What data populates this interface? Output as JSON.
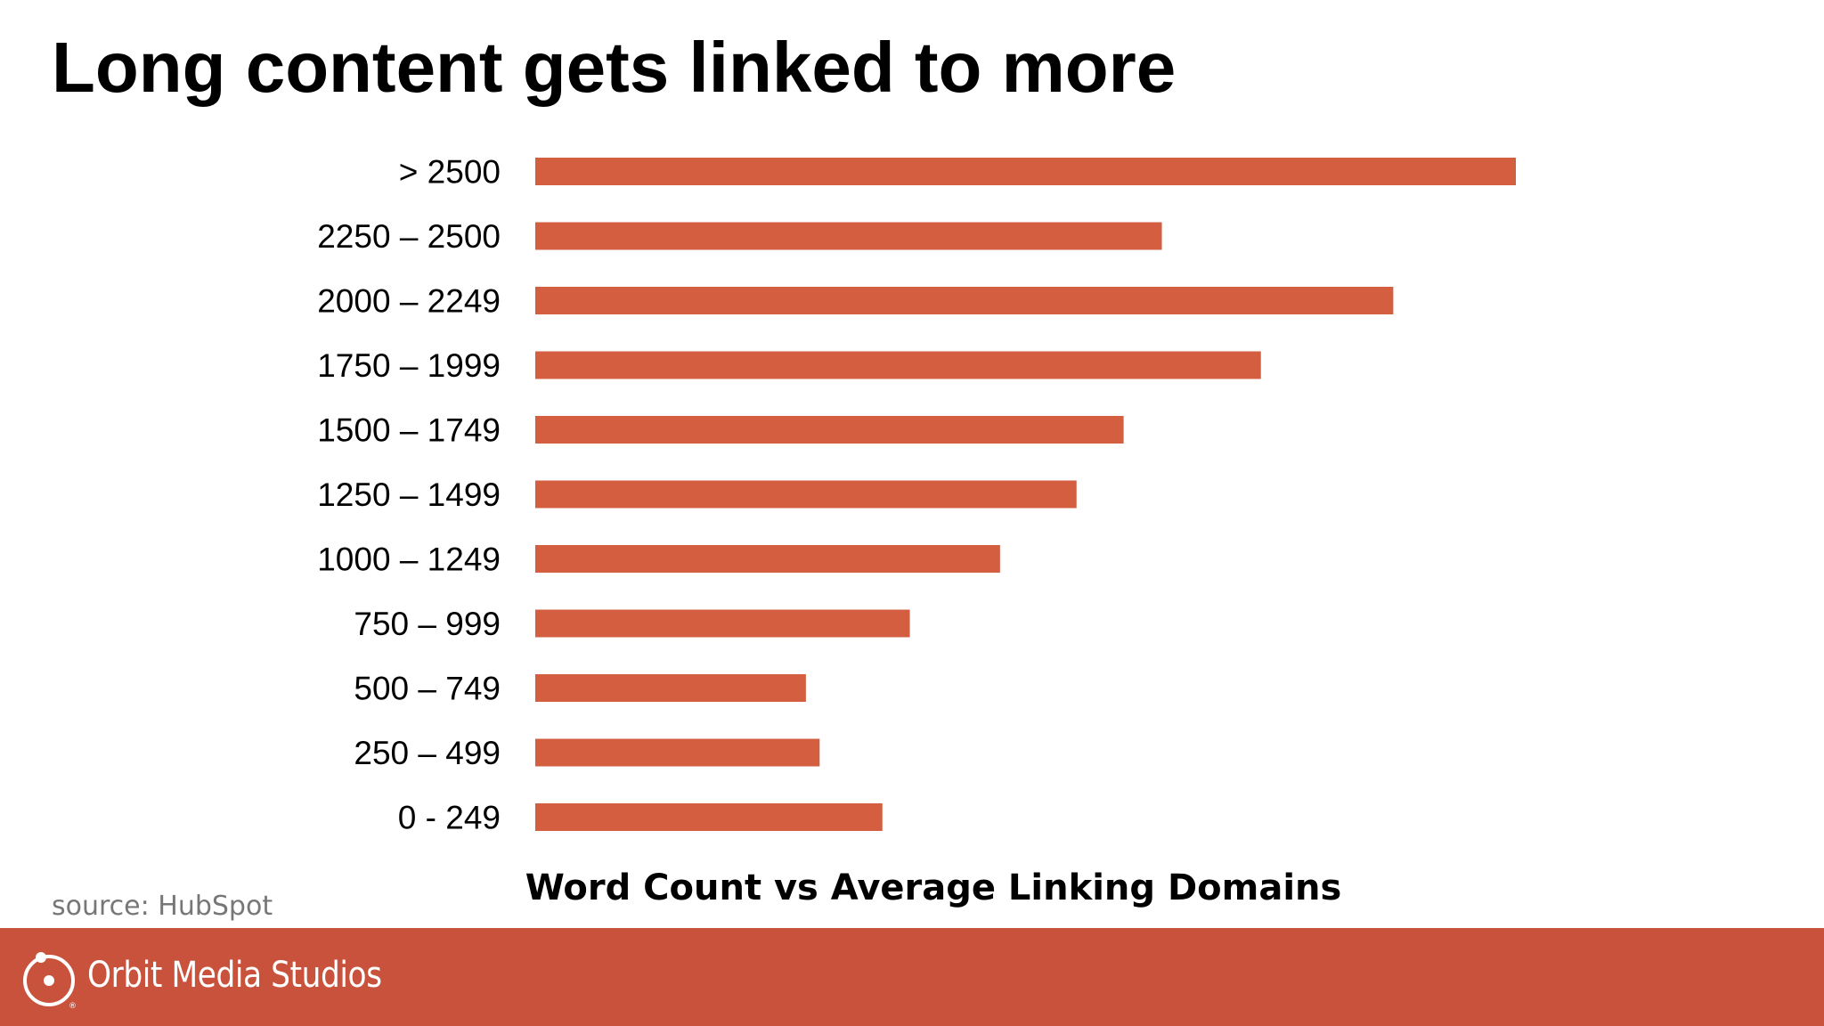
{
  "title": "Long content gets linked to more",
  "source": "source: HubSpot",
  "brand": {
    "name": "Orbit Media Studios",
    "color": "#c9523c",
    "logo_icon": "orbit-circle-icon"
  },
  "bar_color": "#d35f40",
  "chart_data": {
    "type": "bar",
    "orientation": "horizontal",
    "title": "Word Count vs Average Linking Domains",
    "xlabel": "",
    "ylabel": "",
    "grid": false,
    "legend": "none",
    "xlim": [
      0,
      1
    ],
    "categories": [
      "> 2500",
      "2250 – 2500",
      "2000 – 2249",
      "1750 – 1999",
      "1500 – 1749",
      "1250 – 1499",
      "1000 – 1249",
      "750 – 999",
      "500 – 749",
      "250 – 499",
      "0 - 249"
    ],
    "values": [
      1.0,
      0.639,
      0.875,
      0.74,
      0.6,
      0.552,
      0.474,
      0.382,
      0.276,
      0.29,
      0.354
    ],
    "value_scale": "relative to the longest bar (no value axis printed)"
  }
}
